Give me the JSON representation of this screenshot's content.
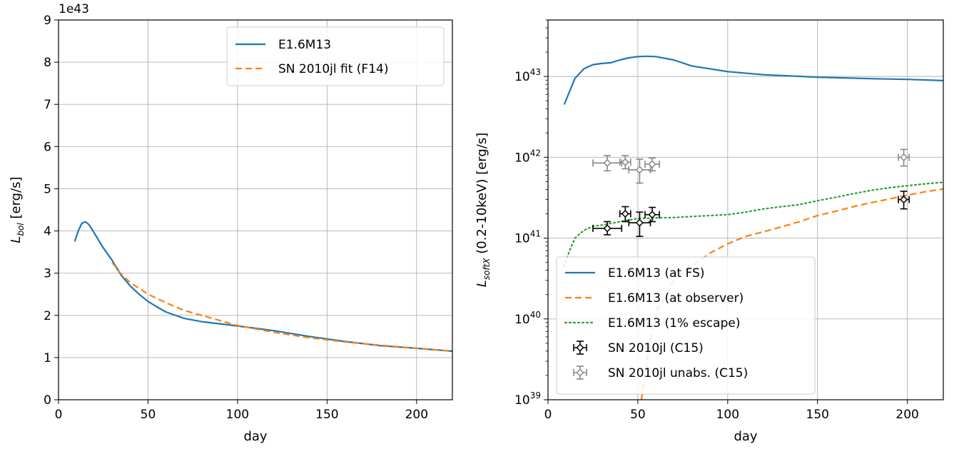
{
  "chart_data": [
    {
      "type": "line",
      "xlabel": "day",
      "ylabel": "[erg/s]",
      "ylabel_symbol": "L",
      "ylabel_subscript": "bol",
      "offset_text": "1e43",
      "xlim": [
        0,
        220
      ],
      "ylim": [
        0,
        9
      ],
      "y_scale": "linear",
      "grid": true,
      "legend_position": "upper right",
      "x_ticks": [
        "0",
        "50",
        "100",
        "150",
        "200"
      ],
      "y_ticks": [
        "0",
        "1",
        "2",
        "3",
        "4",
        "5",
        "6",
        "7",
        "8",
        "9"
      ],
      "series": [
        {
          "name": "E1.6M13",
          "style": "solid",
          "color": "#1f77b4",
          "x": [
            9,
            11,
            13,
            15,
            17,
            20,
            25,
            30,
            35,
            40,
            45,
            50,
            55,
            60,
            70,
            80,
            90,
            100,
            120,
            140,
            160,
            180,
            200,
            220
          ],
          "y": [
            3.75,
            4.0,
            4.18,
            4.22,
            4.15,
            3.95,
            3.6,
            3.3,
            2.95,
            2.7,
            2.5,
            2.33,
            2.2,
            2.08,
            1.93,
            1.85,
            1.8,
            1.75,
            1.64,
            1.5,
            1.38,
            1.28,
            1.22,
            1.15
          ]
        },
        {
          "name": "SN 2010jl fit (F14)",
          "style": "dashed",
          "color": "#ff7f0e",
          "x": [
            30,
            35,
            40,
            50,
            60,
            70,
            80,
            90,
            100,
            120,
            140,
            160,
            180,
            200,
            220
          ],
          "y": [
            3.25,
            2.98,
            2.78,
            2.5,
            2.3,
            2.12,
            2.0,
            1.88,
            1.76,
            1.6,
            1.47,
            1.37,
            1.29,
            1.22,
            1.15
          ]
        }
      ]
    },
    {
      "type": "line",
      "xlabel": "day",
      "ylabel": "(0.2-10keV) [erg/s]",
      "ylabel_symbol": "L",
      "ylabel_subscript": "softX",
      "xlim": [
        0,
        220
      ],
      "ylim": [
        1e+39,
        5e+43
      ],
      "y_scale": "log",
      "grid": true,
      "legend_position": "lower left",
      "x_ticks": [
        "0",
        "50",
        "100",
        "150",
        "200"
      ],
      "y_ticks": [
        {
          "base": "10",
          "exp": "39",
          "value": 39
        },
        {
          "base": "10",
          "exp": "40",
          "value": 40
        },
        {
          "base": "10",
          "exp": "41",
          "value": 41
        },
        {
          "base": "10",
          "exp": "42",
          "value": 42
        },
        {
          "base": "10",
          "exp": "43",
          "value": 43
        }
      ],
      "series": [
        {
          "name": "E1.6M13 (at FS)",
          "style": "solid",
          "color": "#1f77b4",
          "x": [
            9,
            12,
            15,
            20,
            25,
            30,
            35,
            40,
            45,
            50,
            55,
            60,
            70,
            80,
            100,
            120,
            150,
            180,
            200,
            220
          ],
          "y": [
            4.5e+42,
            6.5e+42,
            9.5e+42,
            1.25e+43,
            1.4e+43,
            1.45e+43,
            1.48e+43,
            1.6e+43,
            1.7e+43,
            1.76e+43,
            1.78e+43,
            1.76e+43,
            1.6e+43,
            1.35e+43,
            1.15e+43,
            1.05e+43,
            9.8e+42,
            9.4e+42,
            9.2e+42,
            8.9e+42
          ]
        },
        {
          "name": "E1.6M13 (at observer)",
          "style": "dashed",
          "color": "#ff7f0e",
          "x": [
            52,
            55,
            60,
            70,
            80,
            90,
            100,
            110,
            120,
            130,
            140,
            150,
            160,
            170,
            180,
            190,
            200,
            210,
            220
          ],
          "y": [
            1e+39,
            3e+39,
            1.2e+40,
            3e+40,
            4.5e+40,
            6.5e+40,
            8.5e+40,
            1.05e+41,
            1.2e+41,
            1.38e+41,
            1.6e+41,
            1.9e+41,
            2.15e+41,
            2.45e+41,
            2.75e+41,
            3.05e+41,
            3.4e+41,
            3.75e+41,
            4.05e+41
          ]
        },
        {
          "name": "E1.6M13 (1% escape)",
          "style": "dotted",
          "color": "#2ca02c",
          "x": [
            9,
            12,
            15,
            20,
            25,
            30,
            40,
            50,
            60,
            70,
            80,
            90,
            100,
            110,
            120,
            130,
            140,
            150,
            160,
            170,
            180,
            190,
            200,
            210,
            220
          ],
          "y": [
            4.5e+40,
            7e+40,
            1e+41,
            1.25e+41,
            1.4e+41,
            1.45e+41,
            1.6e+41,
            1.75e+41,
            1.78e+41,
            1.8e+41,
            1.85e+41,
            1.9e+41,
            1.95e+41,
            2.1e+41,
            2.3e+41,
            2.45e+41,
            2.6e+41,
            2.9e+41,
            3.2e+41,
            3.55e+41,
            3.9e+41,
            4.2e+41,
            4.45e+41,
            4.7e+41,
            4.9e+41
          ]
        },
        {
          "name": "SN 2010jl (C15)",
          "style": "errorbar",
          "color": "#000000",
          "points": [
            {
              "x": 33,
              "y": 1.32e+41,
              "xerr": 8,
              "ylo": 1.1e+41,
              "yhi": 1.6e+41
            },
            {
              "x": 43,
              "y": 2e+41,
              "xerr": 3,
              "ylo": 1.6e+41,
              "yhi": 2.45e+41
            },
            {
              "x": 51,
              "y": 1.55e+41,
              "xerr": 6,
              "ylo": 1.05e+41,
              "yhi": 2.1e+41
            },
            {
              "x": 58,
              "y": 1.95e+41,
              "xerr": 4,
              "ylo": 1.6e+41,
              "yhi": 2.4e+41
            },
            {
              "x": 198,
              "y": 3e+41,
              "xerr": 3,
              "ylo": 2.3e+41,
              "yhi": 3.8e+41
            }
          ]
        },
        {
          "name": "SN 2010jl unabs. (C15)",
          "style": "errorbar",
          "color": "#888888",
          "points": [
            {
              "x": 33,
              "y": 8.5e+41,
              "xerr": 8,
              "ylo": 6.8e+41,
              "yhi": 1.05e+42
            },
            {
              "x": 43,
              "y": 8.7e+41,
              "xerr": 3,
              "ylo": 7.2e+41,
              "yhi": 1.05e+42
            },
            {
              "x": 51,
              "y": 7e+41,
              "xerr": 6,
              "ylo": 4.8e+41,
              "yhi": 9.5e+41
            },
            {
              "x": 58,
              "y": 8.2e+41,
              "xerr": 4,
              "ylo": 6.8e+41,
              "yhi": 9.8e+41
            },
            {
              "x": 198,
              "y": 1e+42,
              "xerr": 3,
              "ylo": 7.8e+41,
              "yhi": 1.25e+42
            }
          ]
        }
      ]
    }
  ]
}
